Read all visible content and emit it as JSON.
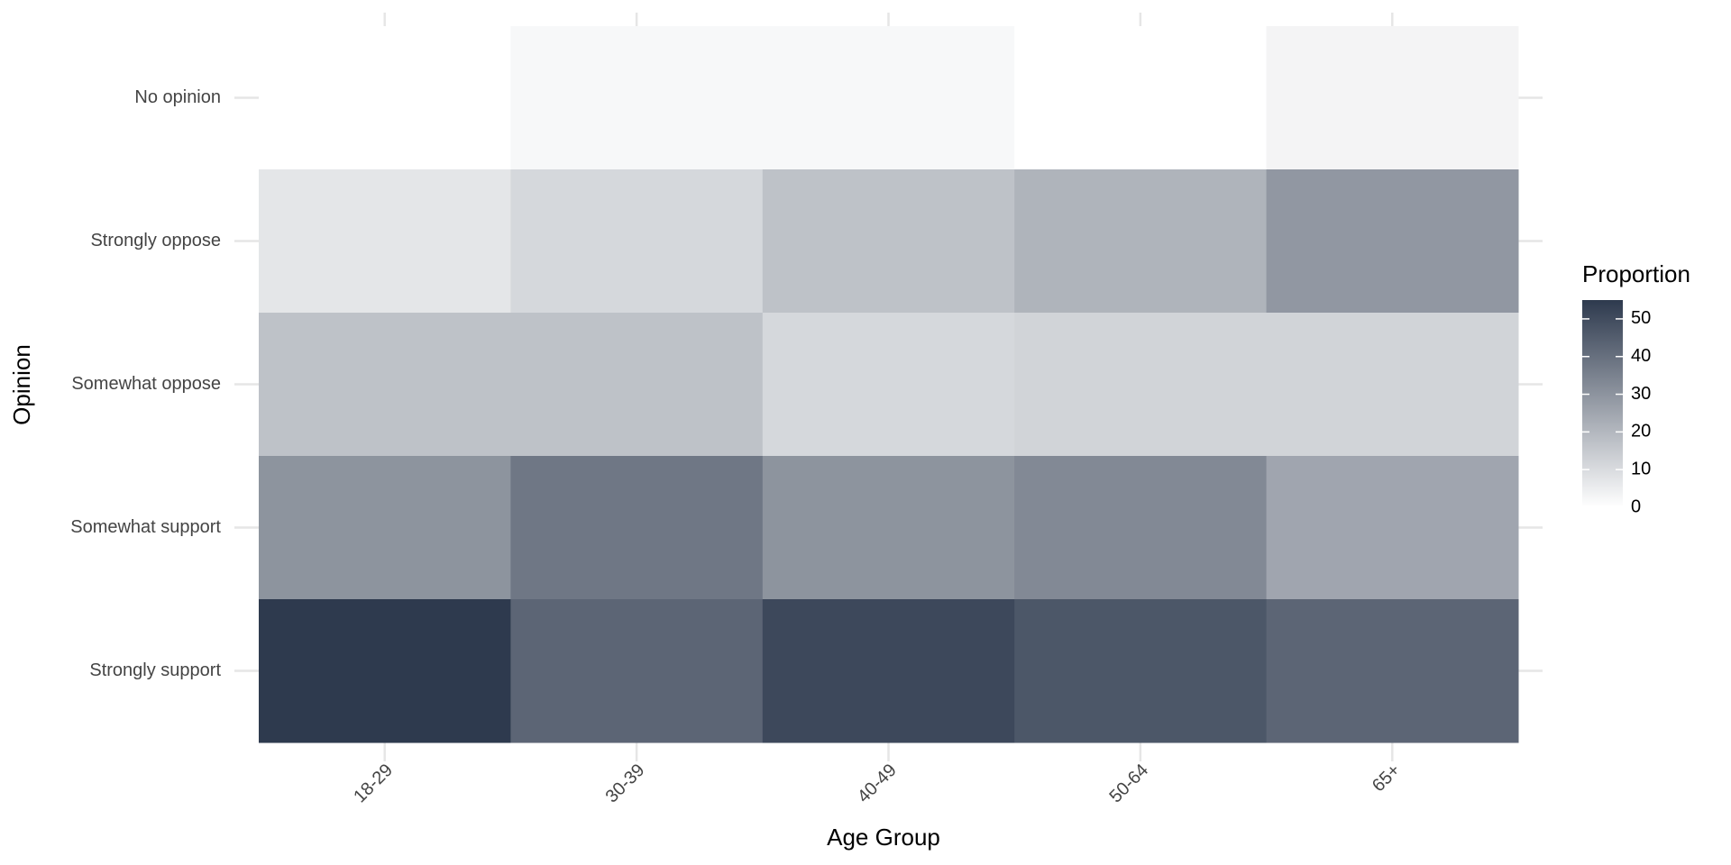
{
  "chart_data": {
    "type": "heatmap",
    "xlabel": "Age Group",
    "ylabel": "Opinion",
    "x_categories": [
      "18-29",
      "30-39",
      "40-49",
      "50-64",
      "65+"
    ],
    "y_categories": [
      "No opinion",
      "Strongly oppose",
      "Somewhat oppose",
      "Somewhat support",
      "Strongly support"
    ],
    "values": [
      [
        0,
        2,
        2,
        0,
        3
      ],
      [
        7,
        11,
        17,
        21,
        29
      ],
      [
        17,
        17,
        11,
        12,
        12
      ],
      [
        30,
        38,
        30,
        33,
        25
      ],
      [
        55,
        43,
        51,
        47,
        43
      ]
    ],
    "colors": [
      "#ffffff",
      "#2e3a4e"
    ],
    "legend_title": "Proportion",
    "clim": [
      0,
      55
    ],
    "cticks": [
      0,
      10,
      20,
      30,
      40,
      50
    ],
    "grid": true
  }
}
